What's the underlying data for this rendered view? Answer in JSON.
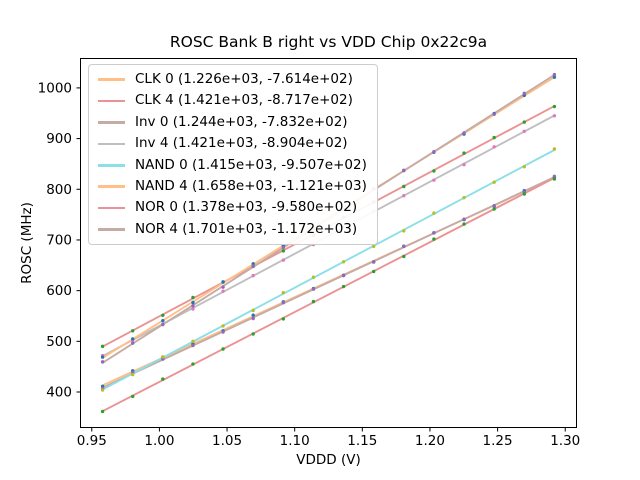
{
  "chart_data": {
    "type": "scatter",
    "title": "ROSC Bank B right vs VDD Chip 0x22c9a",
    "xlabel": "VDDD (V)",
    "ylabel": "ROSC (MHz)",
    "xlim": [
      0.9413,
      1.3087
    ],
    "ylim": [
      329,
      1059
    ],
    "xticks": [
      0.95,
      1.0,
      1.05,
      1.1,
      1.15,
      1.2,
      1.25,
      1.3
    ],
    "xtick_labels": [
      "0.95",
      "1.00",
      "1.05",
      "1.10",
      "1.15",
      "1.20",
      "1.25",
      "1.30"
    ],
    "yticks": [
      400,
      500,
      600,
      700,
      800,
      900,
      1000
    ],
    "ytick_labels": [
      "400",
      "500",
      "600",
      "700",
      "800",
      "900",
      "1000"
    ],
    "grid": false,
    "legend_position": "upper-left",
    "x_points": {
      "start": 0.958,
      "end": 1.292,
      "count": 16
    },
    "fit_model": "y = slope * x + intercept",
    "series": [
      {
        "name": "CLK 0",
        "legend_label": "CLK 0 (1.226e+03, -7.614e+02)",
        "slope": 1226,
        "intercept": -761.4,
        "line_color": "#ffbf87",
        "marker_color": "#1f77b4",
        "y_at_ends": [
          413.1,
          822.6
        ]
      },
      {
        "name": "CLK 4",
        "legend_label": "CLK 4 (1.421e+03, -8.717e+02)",
        "slope": 1421,
        "intercept": -871.7,
        "line_color": "#eb9394",
        "marker_color": "#2ca02c",
        "y_at_ends": [
          489.6,
          964.2
        ]
      },
      {
        "name": "Inv 0",
        "legend_label": "Inv 0 (1.244e+03, -7.832e+02)",
        "slope": 1244,
        "intercept": -783.2,
        "line_color": "#c6aba5",
        "marker_color": "#9467bd",
        "y_at_ends": [
          408.7,
          824.1
        ]
      },
      {
        "name": "Inv 4",
        "legend_label": "Inv 4 (1.421e+03, -8.904e+02)",
        "slope": 1421,
        "intercept": -890.4,
        "line_color": "#bfbfbf",
        "marker_color": "#e377c2",
        "y_at_ends": [
          470.9,
          945.5
        ]
      },
      {
        "name": "NAND 0",
        "legend_label": "NAND 0 (1.415e+03, -9.507e+02)",
        "slope": 1415,
        "intercept": -950.7,
        "line_color": "#8bdfe7",
        "marker_color": "#bcbd22",
        "y_at_ends": [
          404.9,
          877.5
        ]
      },
      {
        "name": "NAND 4",
        "legend_label": "NAND 4 (1.658e+03, -1.121e+03)",
        "slope": 1658,
        "intercept": -1121,
        "line_color": "#ffbf87",
        "marker_color": "#1f77b4",
        "y_at_ends": [
          467.4,
          1021.1
        ]
      },
      {
        "name": "NOR 0",
        "legend_label": "NOR 0 (1.378e+03, -9.580e+02)",
        "slope": 1378,
        "intercept": -958,
        "line_color": "#eb9394",
        "marker_color": "#2ca02c",
        "y_at_ends": [
          362.1,
          822.4
        ]
      },
      {
        "name": "NOR 4",
        "legend_label": "NOR 4 (1.701e+03, -1.172e+03)",
        "slope": 1701,
        "intercept": -1172,
        "line_color": "#c6aba5",
        "marker_color": "#9467bd",
        "y_at_ends": [
          457.6,
          1025.7
        ]
      }
    ],
    "axis_color": "#000000"
  }
}
